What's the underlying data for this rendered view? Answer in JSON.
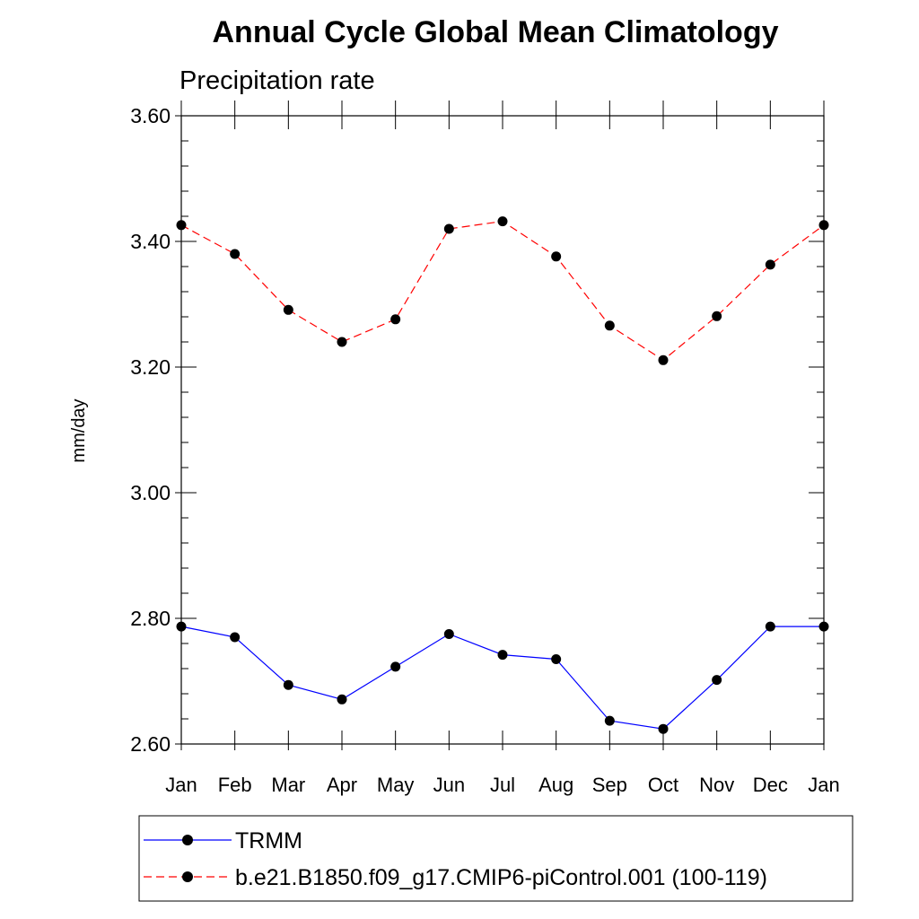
{
  "chart_data": {
    "type": "line",
    "title": "Annual Cycle Global Mean Climatology",
    "subtitle": "Precipitation rate",
    "xlabel": "",
    "ylabel": "mm/day",
    "ylim": [
      2.6,
      3.6
    ],
    "yticks": [
      "2.60",
      "2.80",
      "3.00",
      "3.20",
      "3.40",
      "3.60"
    ],
    "categories": [
      "Jan",
      "Feb",
      "Mar",
      "Apr",
      "May",
      "Jun",
      "Jul",
      "Aug",
      "Sep",
      "Oct",
      "Nov",
      "Dec",
      "Jan"
    ],
    "series": [
      {
        "name": "TRMM",
        "color": "#0000ff",
        "line_style": "solid",
        "marker": "circle",
        "values": [
          2.787,
          2.77,
          2.694,
          2.671,
          2.723,
          2.775,
          2.742,
          2.735,
          2.637,
          2.624,
          2.702,
          2.787,
          2.787
        ]
      },
      {
        "name": "b.e21.B1850.f09_g17.CMIP6-piControl.001 (100-119)",
        "color": "#ff0000",
        "line_style": "dashed",
        "marker": "circle",
        "values": [
          3.426,
          3.38,
          3.291,
          3.24,
          3.276,
          3.42,
          3.432,
          3.376,
          3.266,
          3.211,
          3.281,
          3.363,
          3.426
        ]
      }
    ],
    "legend_position": "bottom"
  }
}
